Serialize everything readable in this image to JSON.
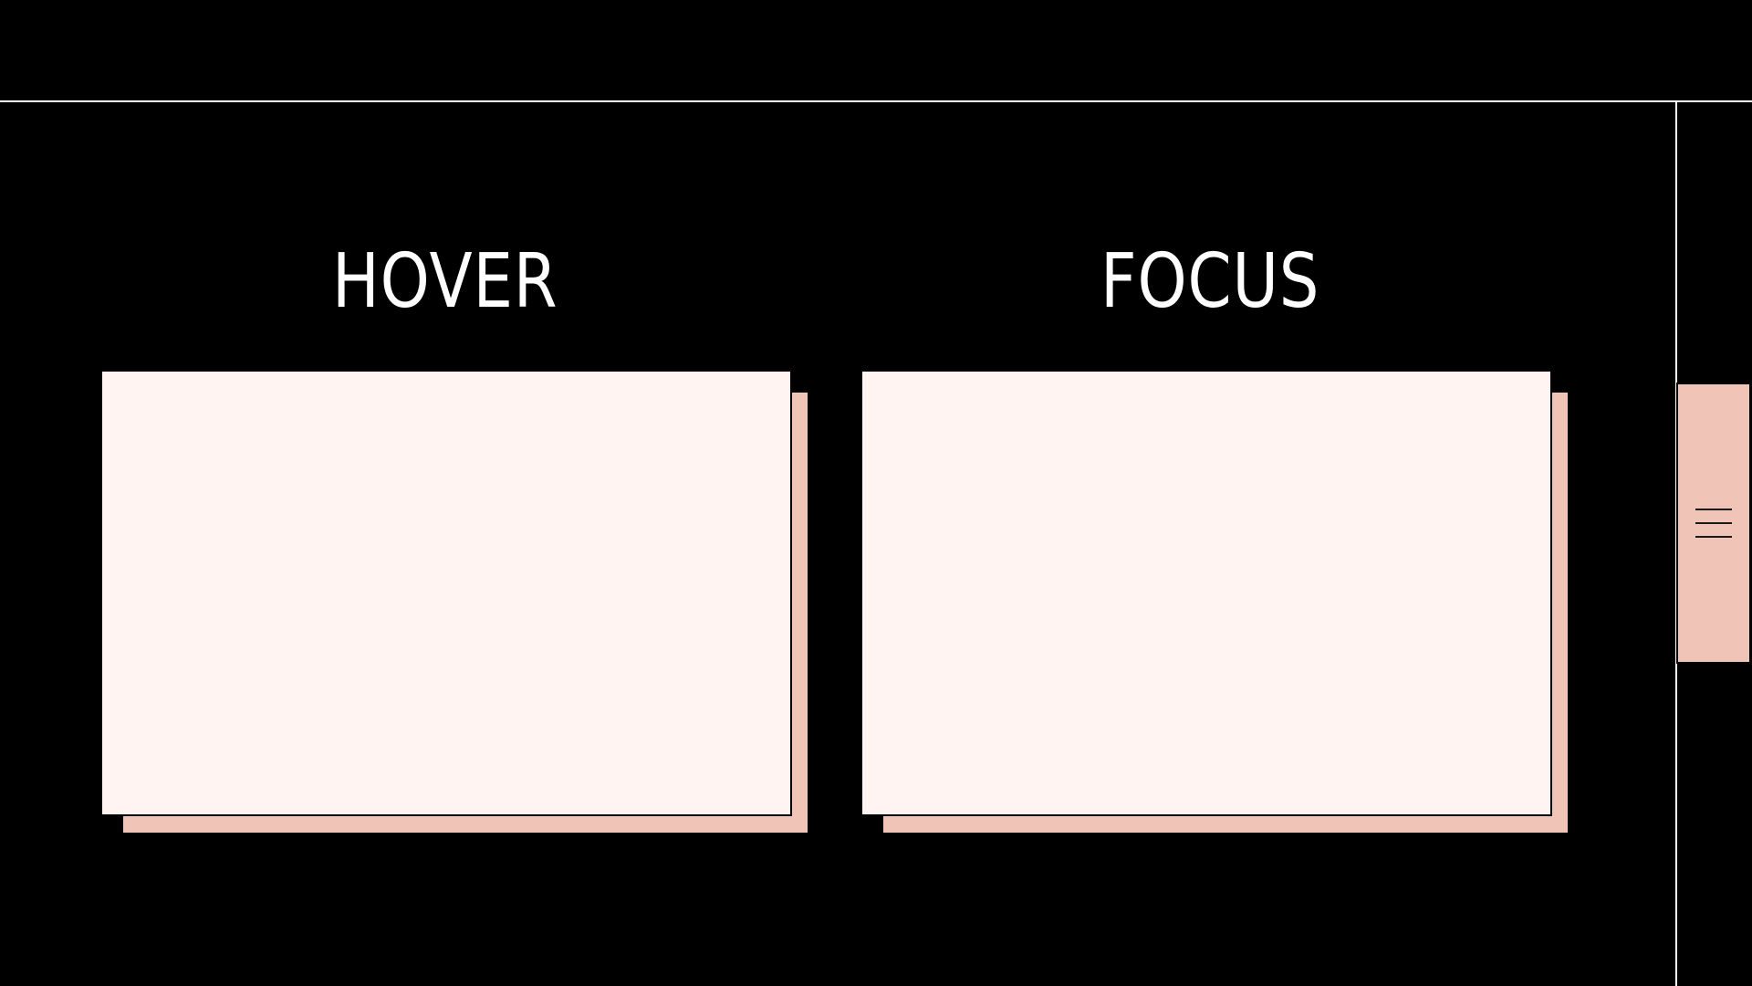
{
  "labels": {
    "hover": "HOVER",
    "focus": "FOCUS"
  },
  "colors": {
    "background": "#000000",
    "card_fill": "#fff4f1",
    "accent_shadow": "#f0c4b6",
    "text": "#ffffff"
  },
  "side_tab": {
    "icon": "hamburger-menu-icon"
  }
}
